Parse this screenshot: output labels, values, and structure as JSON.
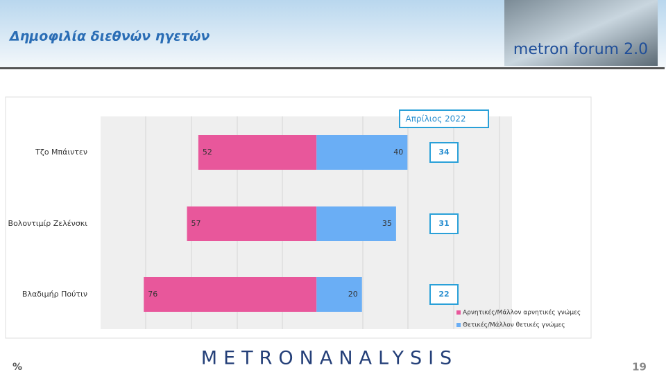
{
  "header": {
    "title": "Δημοφιλία διεθνών ηγετών",
    "logo": "metron forum 2.0"
  },
  "chart_data": {
    "type": "bar",
    "orientation": "horizontal-diverging",
    "categories": [
      "Τζο Μπάιντεν",
      "Βολοντιμίρ Ζελένσκι",
      "Βλαδιμήρ Πούτιν"
    ],
    "series": [
      {
        "name": "Αρνητικές/Μάλλον αρνητικές γνώμες",
        "color": "#e8579b",
        "side": "left",
        "values": [
          52,
          57,
          76
        ]
      },
      {
        "name": "Θετικές/Μάλλον θετικές γνώμες",
        "color": "#6aaef5",
        "side": "right",
        "values": [
          40,
          35,
          20
        ]
      }
    ],
    "xlim": [
      -95,
      86
    ],
    "comparison": {
      "label": "Απρίλιος 2022",
      "values": [
        34,
        31,
        22
      ]
    }
  },
  "footer": {
    "unit": "%",
    "brand": "METRONANALYSIS",
    "page": "19"
  }
}
